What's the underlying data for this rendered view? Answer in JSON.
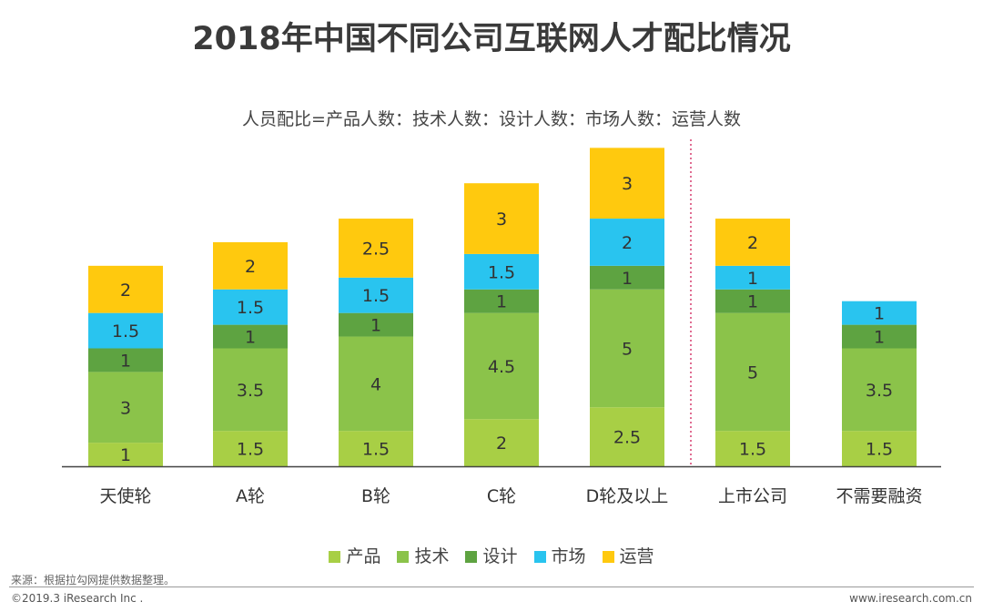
{
  "header": {
    "title": "2018年中国不同公司互联网人才配比情况",
    "subtitle": "人员配比=产品人数：技术人数：设计人数：市场人数：运营人数"
  },
  "colors": {
    "产品": "#a8cf45",
    "技术": "#8bc34a",
    "设计": "#5ea341",
    "市场": "#29c4ef",
    "运营": "#ffc90e",
    "divider": "#d63d6e",
    "axis": "#444444"
  },
  "chart_data": {
    "type": "bar",
    "stacked": true,
    "title": "2018年中国不同公司互联网人才配比情况",
    "subtitle": "人员配比=产品人数：技术人数：设计人数：市场人数：运营人数",
    "categories": [
      "天使轮",
      "A轮",
      "B轮",
      "C轮",
      "D轮及以上",
      "上市公司",
      "不需要融资"
    ],
    "series": [
      {
        "name": "产品",
        "values": [
          1,
          1.5,
          1.5,
          2,
          2.5,
          1.5,
          1.5
        ]
      },
      {
        "name": "技术",
        "values": [
          3,
          3.5,
          4,
          4.5,
          5,
          5,
          3.5
        ]
      },
      {
        "name": "设计",
        "values": [
          1,
          1,
          1,
          1,
          1,
          1,
          1
        ]
      },
      {
        "name": "市场",
        "values": [
          1.5,
          1.5,
          1.5,
          1.5,
          2,
          1,
          1
        ]
      },
      {
        "name": "运营",
        "values": [
          2,
          2,
          2.5,
          3,
          3,
          2,
          null
        ]
      }
    ],
    "ylim": [
      0,
      13.5
    ],
    "xlabel": "",
    "ylabel": "",
    "divider_after_category": "D轮及以上",
    "legend_position": "bottom"
  },
  "footer": {
    "source": "来源：根据拉勾网提供数据整理。",
    "copyright": "©2019.3 iResearch Inc .",
    "website": "www.iresearch.com.cn"
  }
}
